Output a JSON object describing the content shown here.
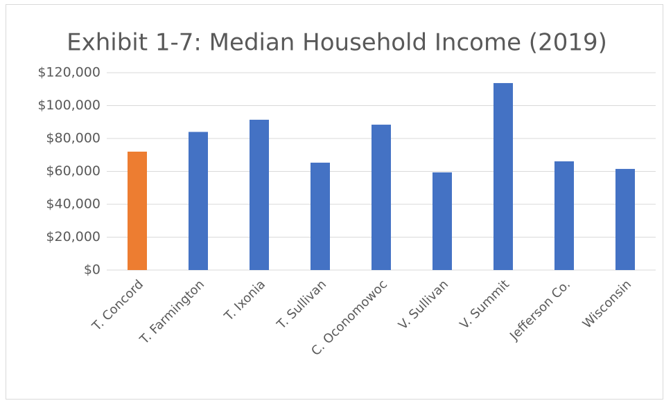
{
  "chart_data": {
    "type": "bar",
    "title": "Exhibit 1-7: Median Household Income (2019)",
    "categories": [
      "T. Concord",
      "T. Farmington",
      "T. Ixonia",
      "T. Sullivan",
      "C. Oconomowoc",
      "V. Sullivan",
      "V. Summit",
      "Jefferson Co.",
      "Wisconsin"
    ],
    "values": [
      72000,
      84000,
      91400,
      65300,
      88400,
      59400,
      113700,
      66100,
      61500
    ],
    "colors": [
      "#ed7d31",
      "#4472c4",
      "#4472c4",
      "#4472c4",
      "#4472c4",
      "#4472c4",
      "#4472c4",
      "#4472c4",
      "#4472c4"
    ],
    "ylim": [
      0,
      120000
    ],
    "yticks": [
      {
        "value": 0,
        "label": "$0"
      },
      {
        "value": 20000,
        "label": "$20,000"
      },
      {
        "value": 40000,
        "label": "$40,000"
      },
      {
        "value": 60000,
        "label": "$60,000"
      },
      {
        "value": 80000,
        "label": "$80,000"
      },
      {
        "value": 100000,
        "label": "$100,000"
      },
      {
        "value": 120000,
        "label": "$120,000"
      }
    ],
    "grid": true
  }
}
